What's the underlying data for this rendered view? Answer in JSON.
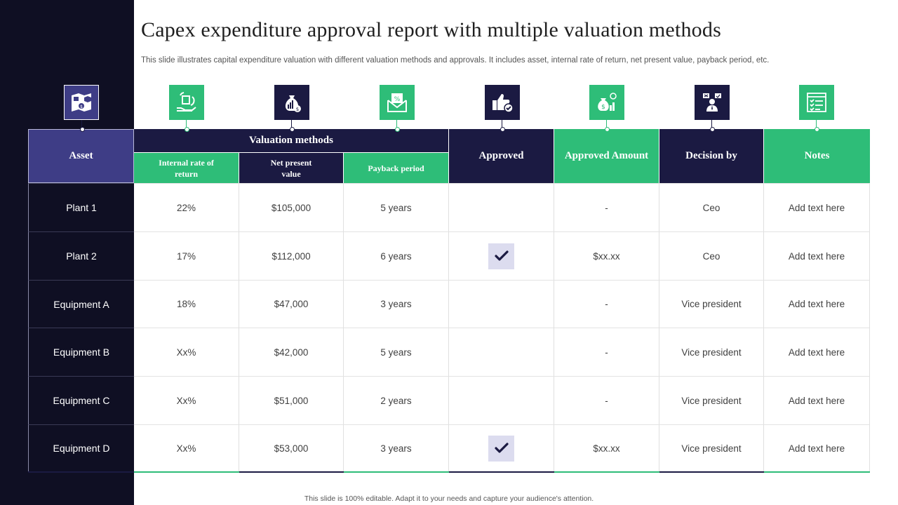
{
  "title": "Capex expenditure approval report with multiple valuation methods",
  "subtitle": "This slide illustrates capital expenditure valuation with different valuation methods and approvals. It includes asset, internal rate of return, net present value, payback period, etc.",
  "footer": "This slide is 100% editable.  Adapt it to your needs and capture your audience's attention.",
  "colors": {
    "dark": "#1b1a42",
    "green": "#2ebd78",
    "purple": "#3e3d86",
    "sidebar": "#0f0f23"
  },
  "icons": [
    "asset-map-icon",
    "hand-document-icon",
    "money-bag-icon",
    "percent-envelope-icon",
    "thumbs-up-check-icon",
    "money-bag-growth-icon",
    "decision-person-icon",
    "notes-checklist-icon"
  ],
  "table": {
    "headers": {
      "asset": "Asset",
      "valuation_methods": "Valuation methods",
      "irr": "Internal rate of return",
      "npv": "Net present value",
      "payback": "Payback period",
      "approved": "Approved",
      "approved_amount": "Approved Amount",
      "decision_by": "Decision by",
      "notes": "Notes"
    },
    "rows": [
      {
        "asset": "Plant 1",
        "irr": "22%",
        "npv": "$105,000",
        "payback": "5 years",
        "approved": false,
        "amount": "-",
        "decision": "Ceo",
        "notes": "Add text here"
      },
      {
        "asset": "Plant 2",
        "irr": "17%",
        "npv": "$112,000",
        "payback": "6 years",
        "approved": true,
        "amount": "$xx.xx",
        "decision": "Ceo",
        "notes": "Add text here"
      },
      {
        "asset": "Equipment A",
        "irr": "18%",
        "npv": "$47,000",
        "payback": "3 years",
        "approved": false,
        "amount": "-",
        "decision": "Vice president",
        "notes": "Add text here"
      },
      {
        "asset": "Equipment B",
        "irr": "Xx%",
        "npv": "$42,000",
        "payback": "5 years",
        "approved": false,
        "amount": "-",
        "decision": "Vice president",
        "notes": "Add text here"
      },
      {
        "asset": "Equipment C",
        "irr": "Xx%",
        "npv": "$51,000",
        "payback": "2 years",
        "approved": false,
        "amount": "-",
        "decision": "Vice president",
        "notes": "Add text here"
      },
      {
        "asset": "Equipment D",
        "irr": "Xx%",
        "npv": "$53,000",
        "payback": "3 years",
        "approved": true,
        "amount": "$xx.xx",
        "decision": "Vice president",
        "notes": "Add text here"
      }
    ]
  }
}
